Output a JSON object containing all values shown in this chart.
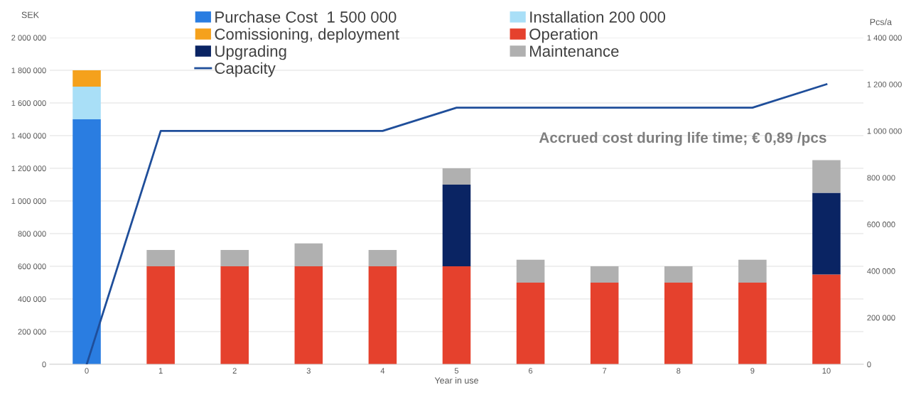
{
  "chart_data": {
    "type": "bar",
    "stacked": true,
    "categories": [
      "0",
      "1",
      "2",
      "3",
      "4",
      "5",
      "6",
      "7",
      "8",
      "9",
      "10"
    ],
    "xlabel": "Year in use",
    "ylabel": "SEK",
    "y2label": "Pcs/a",
    "series": [
      {
        "name": "Purchase Cost  1 500 000",
        "color": "#2a7de1",
        "values": [
          1500000,
          null,
          null,
          null,
          null,
          null,
          null,
          null,
          null,
          null,
          null
        ]
      },
      {
        "name": "Installation 200 000",
        "color": "#a9dff7",
        "values": [
          200000,
          null,
          null,
          null,
          null,
          null,
          null,
          null,
          null,
          null,
          null
        ]
      },
      {
        "name": "Comissioning, deployment",
        "color": "#f5a11c",
        "values": [
          100000,
          null,
          null,
          null,
          null,
          null,
          null,
          null,
          null,
          null,
          null
        ]
      },
      {
        "name": "Operation",
        "color": "#e5412d",
        "values": [
          null,
          600000,
          600000,
          600000,
          600000,
          600000,
          500000,
          500000,
          500000,
          500000,
          550000
        ]
      },
      {
        "name": "Upgrading",
        "color": "#0a2463",
        "values": [
          null,
          null,
          null,
          null,
          null,
          500000,
          null,
          null,
          null,
          null,
          500000
        ]
      },
      {
        "name": "Maintenance",
        "color": "#b0b0b0",
        "values": [
          null,
          100000,
          100000,
          140000,
          100000,
          100000,
          140000,
          100000,
          100000,
          140000,
          200000
        ]
      },
      {
        "name": "Capacity",
        "type": "line",
        "axis": "y2",
        "color": "#1f4e9a",
        "values": [
          0,
          1000000,
          1000000,
          1000000,
          1000000,
          1100000,
          1100000,
          1100000,
          1100000,
          1100000,
          1200000
        ]
      }
    ],
    "ylim": [
      0,
      2000000
    ],
    "yticks": [
      0,
      {
        "value": 200000,
        "label": "200 000"
      },
      {
        "value": 400000,
        "label": "400 000"
      },
      {
        "value": 600000,
        "label": "600 000"
      },
      {
        "value": 800000,
        "label": "800 000"
      },
      {
        "value": 1000000,
        "label": "1 000 000"
      },
      {
        "value": 1200000,
        "label": "1 200 000"
      },
      {
        "value": 1400000,
        "label": "1 400 000"
      },
      {
        "value": 1600000,
        "label": "1 600 000"
      },
      {
        "value": 1800000,
        "label": "1 800 000"
      },
      {
        "value": 2000000,
        "label": "2 000 000"
      }
    ],
    "y2lim": [
      0,
      1400000
    ],
    "y2ticks": [
      0,
      {
        "value": 200000,
        "label": "200 000"
      },
      {
        "value": 400000,
        "label": "400 000"
      },
      {
        "value": 600000,
        "label": "600 000"
      },
      {
        "value": 800000,
        "label": "800 000"
      },
      {
        "value": 1000000,
        "label": "1 000 000"
      },
      {
        "value": 1200000,
        "label": "1 200 000"
      },
      {
        "value": 1400000,
        "label": "1 400 000"
      }
    ],
    "annotations": [
      "Accrued cost during life time; € 0,89 /pcs"
    ],
    "grid": "y",
    "legend": "top",
    "marker": "none",
    "line_style": "solid"
  }
}
